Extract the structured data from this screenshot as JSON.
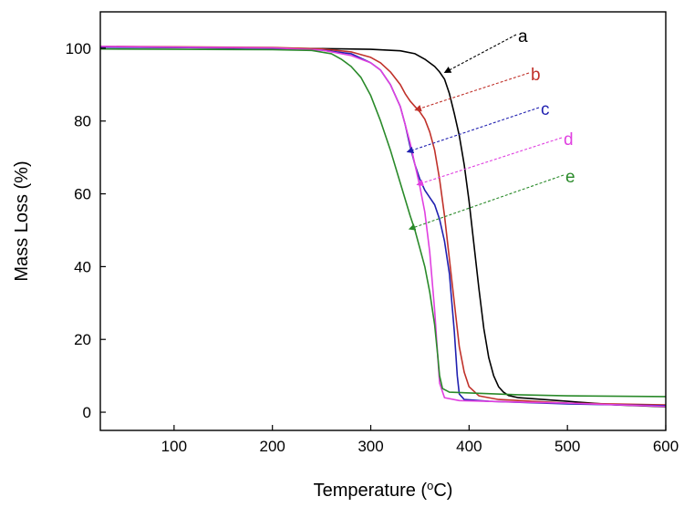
{
  "chart_data": {
    "type": "line",
    "xlabel": "Temperature (",
    "xlabel_sup": "o",
    "xlabel_unit": "C)",
    "ylabel": "Mass Loss (%)",
    "xlim": [
      25,
      600
    ],
    "ylim": [
      -5,
      110
    ],
    "xticks": [
      100,
      200,
      300,
      400,
      500,
      600
    ],
    "yticks": [
      0,
      20,
      40,
      60,
      80,
      100
    ],
    "grid": false,
    "series": [
      {
        "name": "a",
        "color": "#000000",
        "points": [
          [
            25,
            100.4
          ],
          [
            100,
            100.2
          ],
          [
            200,
            100
          ],
          [
            250,
            99.9
          ],
          [
            300,
            99.7
          ],
          [
            330,
            99.3
          ],
          [
            345,
            98.5
          ],
          [
            355,
            97
          ],
          [
            365,
            95
          ],
          [
            370,
            93.5
          ],
          [
            375,
            91.5
          ],
          [
            380,
            87.5
          ],
          [
            385,
            82
          ],
          [
            390,
            76
          ],
          [
            395,
            68
          ],
          [
            400,
            58
          ],
          [
            405,
            46
          ],
          [
            410,
            34
          ],
          [
            415,
            23
          ],
          [
            420,
            15
          ],
          [
            425,
            10
          ],
          [
            430,
            7
          ],
          [
            435,
            5.5
          ],
          [
            440,
            4.6
          ],
          [
            450,
            4
          ],
          [
            500,
            3
          ],
          [
            550,
            2
          ],
          [
            600,
            1.5
          ]
        ],
        "label_pos": [
          578,
          40
        ],
        "arrow_target": [
          375,
          93.3
        ]
      },
      {
        "name": "b",
        "color": "#c0312a",
        "points": [
          [
            25,
            100.5
          ],
          [
            100,
            100.4
          ],
          [
            200,
            100.2
          ],
          [
            250,
            99.8
          ],
          [
            280,
            99
          ],
          [
            300,
            97.5
          ],
          [
            310,
            96
          ],
          [
            320,
            93.5
          ],
          [
            330,
            90
          ],
          [
            335,
            87.5
          ],
          [
            340,
            85.5
          ],
          [
            345,
            84
          ],
          [
            350,
            82.5
          ],
          [
            355,
            80.5
          ],
          [
            360,
            77
          ],
          [
            365,
            72
          ],
          [
            370,
            64
          ],
          [
            375,
            54
          ],
          [
            380,
            42
          ],
          [
            385,
            30
          ],
          [
            390,
            18
          ],
          [
            395,
            11
          ],
          [
            400,
            7
          ],
          [
            410,
            4.5
          ],
          [
            430,
            3.5
          ],
          [
            500,
            2.5
          ],
          [
            600,
            2
          ]
        ],
        "label_pos": [
          592,
          82
        ],
        "arrow_target": [
          345,
          83
        ]
      },
      {
        "name": "c",
        "color": "#2020b0",
        "points": [
          [
            25,
            100.3
          ],
          [
            100,
            100.2
          ],
          [
            200,
            100
          ],
          [
            250,
            99.5
          ],
          [
            280,
            98.5
          ],
          [
            300,
            96
          ],
          [
            310,
            94
          ],
          [
            320,
            90
          ],
          [
            330,
            84
          ],
          [
            335,
            79
          ],
          [
            340,
            73
          ],
          [
            345,
            68
          ],
          [
            350,
            64
          ],
          [
            355,
            61
          ],
          [
            360,
            59
          ],
          [
            365,
            57
          ],
          [
            370,
            53
          ],
          [
            375,
            47
          ],
          [
            380,
            38
          ],
          [
            385,
            22
          ],
          [
            388,
            10
          ],
          [
            390,
            5
          ],
          [
            395,
            3.5
          ],
          [
            420,
            3
          ],
          [
            500,
            2.3
          ],
          [
            600,
            1.8
          ]
        ],
        "label_pos": [
          603,
          120
        ],
        "arrow_target": [
          337,
          71.5
        ]
      },
      {
        "name": "d",
        "color": "#e040e0",
        "points": [
          [
            25,
            100.5
          ],
          [
            100,
            100.3
          ],
          [
            200,
            100.1
          ],
          [
            250,
            99.5
          ],
          [
            280,
            98
          ],
          [
            300,
            96
          ],
          [
            310,
            94
          ],
          [
            320,
            90
          ],
          [
            330,
            84
          ],
          [
            335,
            79
          ],
          [
            340,
            74
          ],
          [
            345,
            68
          ],
          [
            350,
            62
          ],
          [
            355,
            55
          ],
          [
            360,
            44
          ],
          [
            365,
            28
          ],
          [
            368,
            16
          ],
          [
            370,
            8
          ],
          [
            375,
            4
          ],
          [
            390,
            3.2
          ],
          [
            450,
            2.8
          ],
          [
            500,
            2.5
          ],
          [
            600,
            1.6
          ]
        ],
        "label_pos": [
          628,
          153
        ],
        "arrow_target": [
          347,
          62.5
        ]
      },
      {
        "name": "e",
        "color": "#2a8a2a",
        "points": [
          [
            25,
            99.8
          ],
          [
            100,
            99.7
          ],
          [
            200,
            99.6
          ],
          [
            240,
            99.4
          ],
          [
            260,
            98.5
          ],
          [
            270,
            97
          ],
          [
            280,
            95
          ],
          [
            290,
            92
          ],
          [
            300,
            87
          ],
          [
            310,
            80
          ],
          [
            320,
            72
          ],
          [
            330,
            63
          ],
          [
            340,
            54
          ],
          [
            345,
            50
          ],
          [
            350,
            45
          ],
          [
            355,
            40
          ],
          [
            360,
            33
          ],
          [
            365,
            24
          ],
          [
            368,
            16
          ],
          [
            370,
            10
          ],
          [
            373,
            6.5
          ],
          [
            380,
            5.5
          ],
          [
            450,
            4.8
          ],
          [
            500,
            4.5
          ],
          [
            600,
            4.3
          ]
        ],
        "label_pos": [
          630,
          194
        ],
        "arrow_target": [
          339,
          50.3
        ]
      }
    ]
  }
}
